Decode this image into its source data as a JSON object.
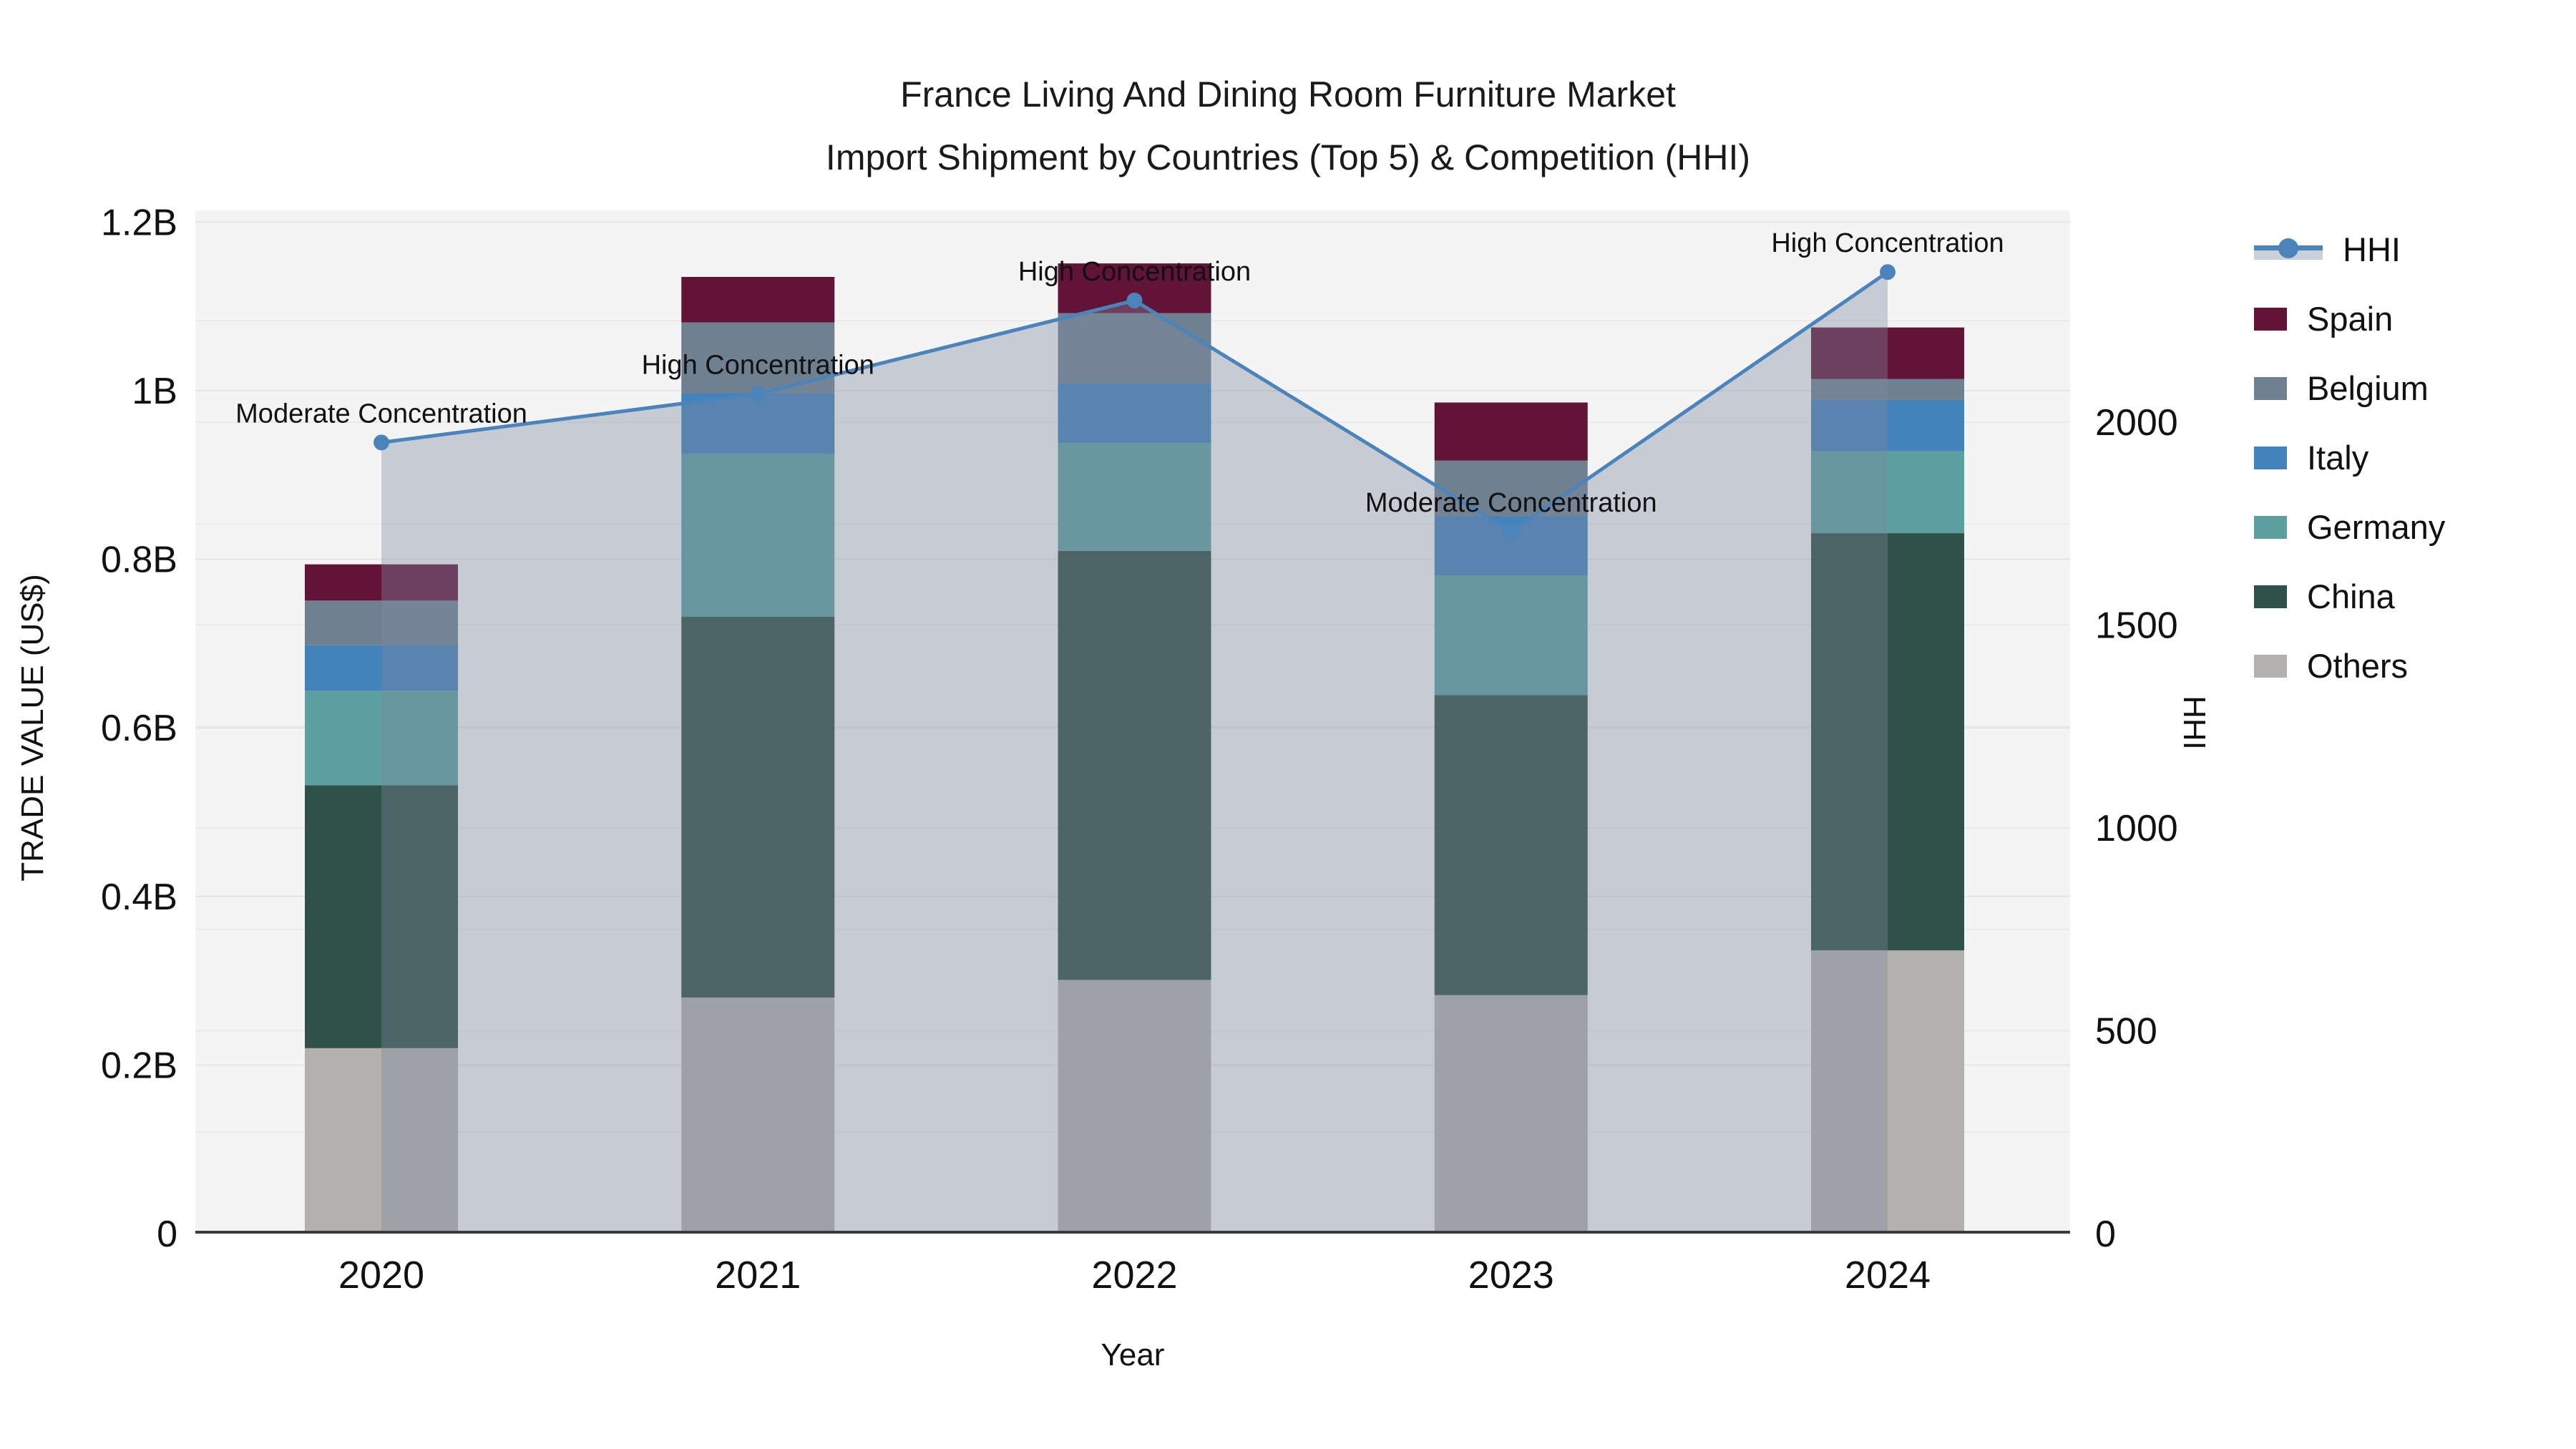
{
  "title": {
    "line1": "France Living And Dining Room Furniture Market",
    "line2": "Import Shipment by Countries (Top 5) & Competition (HHI)"
  },
  "axes": {
    "left": {
      "title": "TRADE VALUE (US$)",
      "ticks": [
        {
          "v": 0,
          "label": "0"
        },
        {
          "v": 0.2,
          "label": "0.2B"
        },
        {
          "v": 0.4,
          "label": "0.4B"
        },
        {
          "v": 0.6,
          "label": "0.6B"
        },
        {
          "v": 0.8,
          "label": "0.8B"
        },
        {
          "v": 1.0,
          "label": "1B"
        },
        {
          "v": 1.2,
          "label": "1.2B"
        }
      ]
    },
    "right": {
      "title": "HHI",
      "ticks": [
        {
          "v": 0,
          "label": "0"
        },
        {
          "v": 500,
          "label": "500"
        },
        {
          "v": 1000,
          "label": "1000"
        },
        {
          "v": 1500,
          "label": "1500"
        },
        {
          "v": 2000,
          "label": "2000"
        }
      ]
    },
    "x": {
      "title": "Year"
    }
  },
  "legend": {
    "items": [
      {
        "label": "HHI",
        "color": "#4a84bb",
        "type": "line"
      },
      {
        "label": "Spain",
        "color": "#611437",
        "type": "box"
      },
      {
        "label": "Belgium",
        "color": "#6f8090",
        "type": "box"
      },
      {
        "label": "Italy",
        "color": "#4382bb",
        "type": "box"
      },
      {
        "label": "Germany",
        "color": "#5da0a1",
        "type": "box"
      },
      {
        "label": "China",
        "color": "#30504a",
        "type": "box"
      },
      {
        "label": "Others",
        "color": "#b3b1ae",
        "type": "box"
      }
    ]
  },
  "chart_data": {
    "type": "bar",
    "subtype": "stacked-bar-with-line",
    "categories": [
      "2020",
      "2021",
      "2022",
      "2023",
      "2024"
    ],
    "xlabel": "Year",
    "ylabel_left": "TRADE VALUE (US$)",
    "ylabel_right": "HHI",
    "ylim_left_B": [
      0,
      1.2
    ],
    "ylim_right": [
      0,
      2400
    ],
    "grid": true,
    "legend_position": "right",
    "series": [
      {
        "name": "Others",
        "color": "#b3b1ae",
        "values_B": [
          0.22,
          0.28,
          0.301,
          0.283,
          0.336
        ]
      },
      {
        "name": "China",
        "color": "#30504a",
        "values_B": [
          0.312,
          0.452,
          0.509,
          0.356,
          0.495
        ]
      },
      {
        "name": "Germany",
        "color": "#5da0a1",
        "values_B": [
          0.112,
          0.193,
          0.128,
          0.142,
          0.097
        ]
      },
      {
        "name": "Italy",
        "color": "#4382bb",
        "values_B": [
          0.054,
          0.072,
          0.071,
          0.07,
          0.061
        ]
      },
      {
        "name": "Belgium",
        "color": "#6f8090",
        "values_B": [
          0.053,
          0.084,
          0.083,
          0.066,
          0.025
        ]
      },
      {
        "name": "Spain",
        "color": "#611437",
        "values_B": [
          0.043,
          0.054,
          0.059,
          0.069,
          0.061
        ]
      }
    ],
    "bar_totals_B": [
      0.794,
      1.135,
      1.151,
      0.986,
      1.075
    ],
    "hhi": {
      "name": "HHI",
      "values": [
        1950,
        2070,
        2300,
        1730,
        2370
      ],
      "line_color": "#4a84bb",
      "area_color": "rgba(125,138,158,0.38)"
    },
    "annotations": [
      {
        "year": "2020",
        "text": "Moderate Concentration"
      },
      {
        "year": "2021",
        "text": "High Concentration"
      },
      {
        "year": "2022",
        "text": "High Concentration"
      },
      {
        "year": "2023",
        "text": "Moderate Concentration"
      },
      {
        "year": "2024",
        "text": "High Concentration"
      }
    ],
    "plot_bg_color": "#f4f4f5",
    "gridline_color_value": "#e5e5e8",
    "gridline_color_hhi": "#eaeaed",
    "axis_line_color": "#3c3c3c",
    "text_color": "#111111"
  }
}
